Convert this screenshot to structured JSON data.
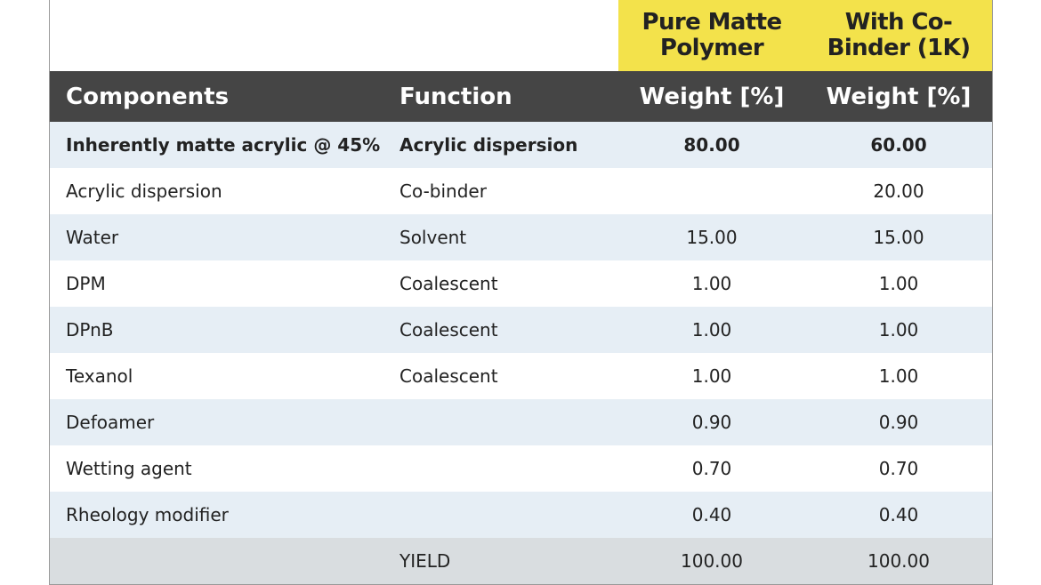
{
  "table": {
    "column_groups": [
      "Pure Matte Polymer",
      "With Co-Binder (1K)"
    ],
    "columns": [
      "Components",
      "Function",
      "Weight [%]",
      "Weight [%]"
    ],
    "rows": [
      [
        "Inherently matte acrylic @ 45%",
        "Acrylic dispersion",
        "80.00",
        "60.00"
      ],
      [
        "Acrylic dispersion",
        "Co-binder",
        null,
        "20.00"
      ],
      [
        "Water",
        "Solvent",
        "15.00",
        "15.00"
      ],
      [
        "DPM",
        "Coalescent",
        "1.00",
        "1.00"
      ],
      [
        "DPnB",
        "Coalescent",
        "1.00",
        "1.00"
      ],
      [
        "Texanol",
        "Coalescent",
        "1.00",
        "1.00"
      ],
      [
        "Defoamer",
        null,
        "0.90",
        "0.90"
      ],
      [
        "Wetting agent",
        null,
        "0.70",
        "0.70"
      ],
      [
        "Rheology modifier",
        null,
        "0.40",
        "0.40"
      ]
    ],
    "footer": [
      null,
      "YIELD",
      "100.00",
      "100.00"
    ]
  }
}
